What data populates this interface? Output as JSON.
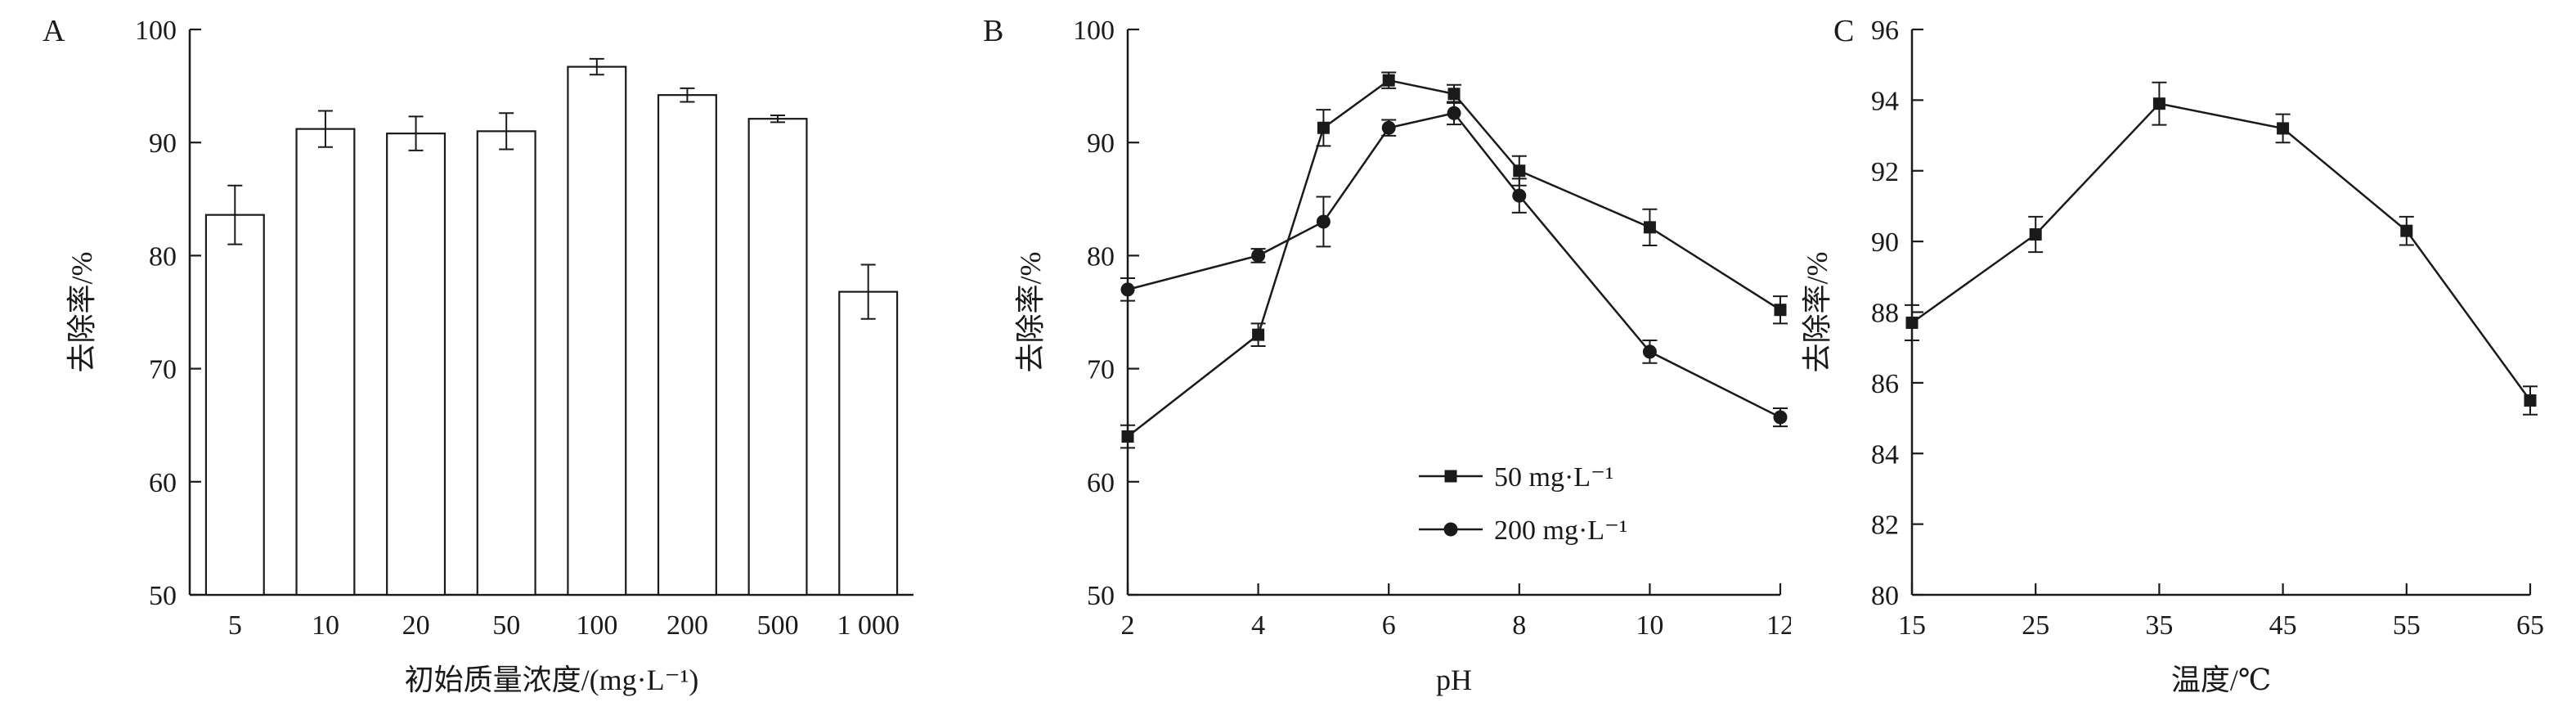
{
  "colors": {
    "ink": "#1a1a1a",
    "background": "#ffffff"
  },
  "chart_data": [
    {
      "panel": "A",
      "type": "bar",
      "title": "",
      "xlabel": "初始质量浓度/(mg·L⁻¹)",
      "ylabel": "去除率/%",
      "categories": [
        "5",
        "10",
        "20",
        "50",
        "100",
        "200",
        "500",
        "1 000"
      ],
      "values": [
        83.6,
        91.2,
        90.8,
        91.0,
        96.7,
        94.2,
        92.1,
        76.8
      ],
      "errors": [
        2.6,
        1.6,
        1.5,
        1.6,
        0.7,
        0.6,
        0.3,
        2.4
      ],
      "ylim": [
        50,
        100
      ],
      "ytick_step": 10,
      "grid": false,
      "legend_position": "none"
    },
    {
      "panel": "B",
      "type": "line",
      "title": "",
      "xlabel": "pH",
      "ylabel": "去除率/%",
      "x": [
        2,
        4,
        5,
        6,
        7,
        8,
        10,
        12
      ],
      "series": [
        {
          "name": "50 mg·L⁻¹",
          "marker": "square",
          "values": [
            64.0,
            73.0,
            91.3,
            95.5,
            94.3,
            87.5,
            82.5,
            75.2
          ],
          "errors": [
            1.0,
            1.0,
            1.6,
            0.7,
            0.8,
            1.3,
            1.6,
            1.2
          ]
        },
        {
          "name": "200 mg·L⁻¹",
          "marker": "circle",
          "values": [
            77.0,
            80.0,
            83.0,
            91.3,
            92.6,
            85.3,
            71.5,
            65.7
          ],
          "errors": [
            1.0,
            0.6,
            2.2,
            0.7,
            1.0,
            1.5,
            1.0,
            0.8
          ]
        }
      ],
      "xlim": [
        2,
        12
      ],
      "xticks": [
        2,
        4,
        6,
        8,
        10,
        12
      ],
      "ylim": [
        50,
        100
      ],
      "ytick_step": 10,
      "grid": false,
      "legend_position": "bottom-right"
    },
    {
      "panel": "C",
      "type": "line",
      "title": "",
      "xlabel": "温度/℃",
      "ylabel": "去除率/%",
      "x": [
        15,
        25,
        35,
        45,
        55,
        65
      ],
      "series": [
        {
          "name": "",
          "marker": "square",
          "values": [
            87.7,
            90.2,
            93.9,
            93.2,
            90.3,
            85.5
          ],
          "errors": [
            0.5,
            0.5,
            0.6,
            0.4,
            0.4,
            0.4
          ]
        }
      ],
      "xlim": [
        15,
        65
      ],
      "xticks": [
        15,
        25,
        35,
        45,
        55,
        65
      ],
      "ylim": [
        80,
        96
      ],
      "ytick_step": 2,
      "grid": false,
      "legend_position": "none"
    }
  ]
}
